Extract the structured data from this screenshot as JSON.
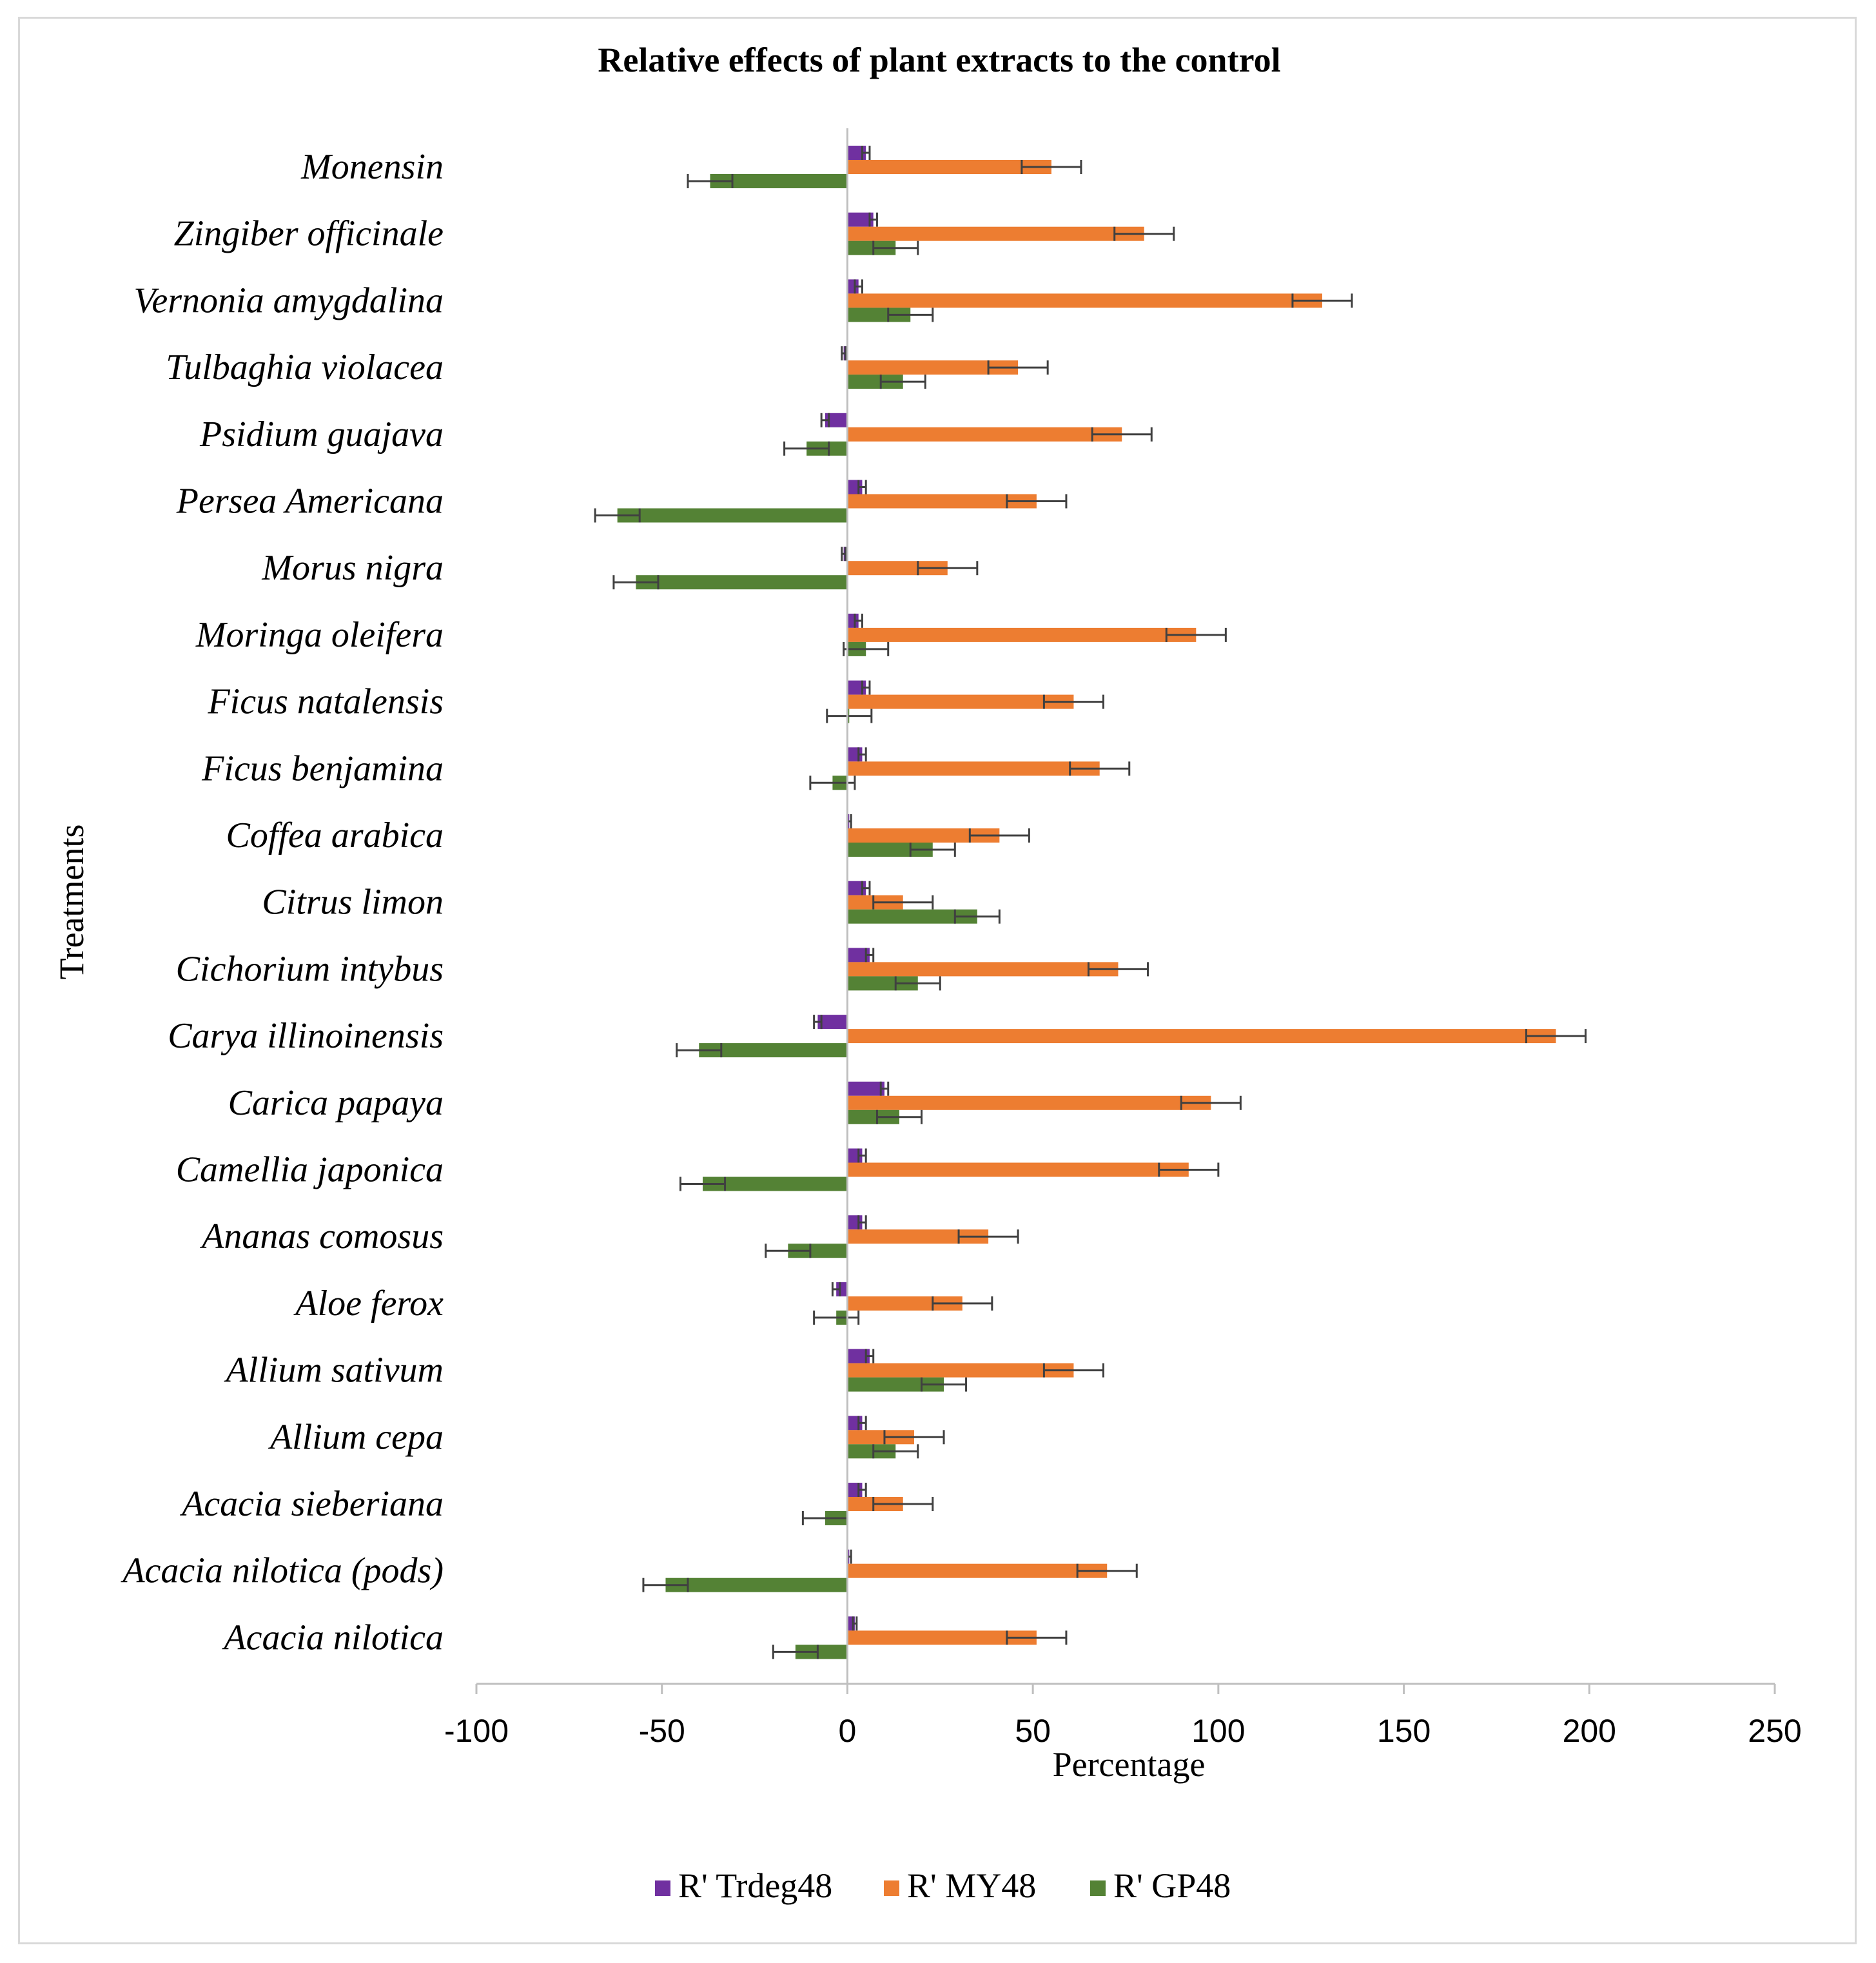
{
  "chart_data": {
    "type": "bar",
    "orientation": "horizontal",
    "title": "Relative effects of plant extracts to the control",
    "xlabel": "Percentage",
    "ylabel": "Treatments",
    "xlim": [
      -100,
      250
    ],
    "xticks": [
      -100,
      -50,
      0,
      50,
      100,
      150,
      200,
      250
    ],
    "grid": false,
    "legend_position": "bottom",
    "categories": [
      "Monensin",
      "Zingiber officinale",
      "Vernonia amygdalina",
      "Tulbaghia violacea",
      "Psidium guajava",
      "Persea Americana",
      "Morus nigra",
      "Moringa oleifera",
      "Ficus natalensis",
      "Ficus benjamina",
      "Coffea arabica",
      "Citrus limon",
      "Cichorium intybus",
      "Carya illinoinensis",
      "Carica papaya",
      "Camellia japonica",
      "Ananas comosus",
      "Aloe ferox",
      "Allium sativum",
      "Allium cepa",
      "Acacia sieberiana",
      "Acacia nilotica (pods)",
      "Acacia nilotica"
    ],
    "series": [
      {
        "name": "R' Trdeg48",
        "color": "#7030a0",
        "values": [
          5,
          7,
          3,
          -1,
          -6,
          4,
          -1,
          3,
          5,
          4,
          0.5,
          5,
          6,
          -8,
          10,
          4,
          4,
          -3,
          6,
          4,
          4,
          0.5,
          2
        ],
        "errors": [
          1,
          1,
          1,
          0.5,
          1,
          1,
          0.5,
          1,
          1,
          1,
          0.5,
          1,
          1,
          1,
          1,
          1,
          1,
          1,
          1,
          1,
          1,
          0.5,
          0.5
        ]
      },
      {
        "name": "R' MY48",
        "color": "#ed7d31",
        "values": [
          55,
          80,
          128,
          46,
          74,
          51,
          27,
          94,
          61,
          68,
          41,
          15,
          73,
          191,
          98,
          92,
          38,
          31,
          61,
          18,
          15,
          70,
          51
        ],
        "errors": [
          8,
          8,
          8,
          8,
          8,
          8,
          8,
          8,
          8,
          8,
          8,
          8,
          8,
          8,
          8,
          8,
          8,
          8,
          8,
          8,
          8,
          8,
          8
        ]
      },
      {
        "name": "R' GP48",
        "color": "#548235",
        "values": [
          -37,
          13,
          17,
          15,
          -11,
          -62,
          -57,
          5,
          0.5,
          -4,
          23,
          35,
          19,
          -40,
          14,
          -39,
          -16,
          -3,
          26,
          13,
          -6,
          -49,
          -14
        ],
        "errors": [
          6,
          6,
          6,
          6,
          6,
          6,
          6,
          6,
          6,
          6,
          6,
          6,
          6,
          6,
          6,
          6,
          6,
          6,
          6,
          6,
          6,
          6,
          6
        ]
      }
    ]
  }
}
